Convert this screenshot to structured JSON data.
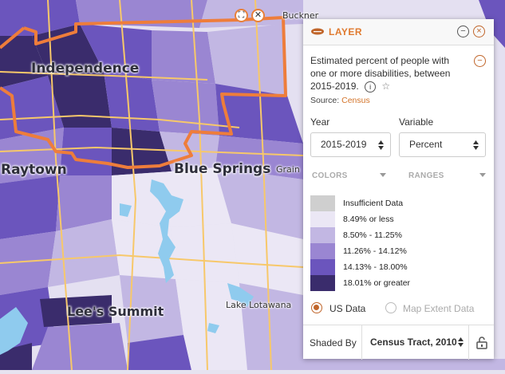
{
  "map": {
    "cities": {
      "independence": "Independence",
      "raytown": "Raytown",
      "blue_springs": "Blue Springs",
      "lees_summit": "Lee's Summit",
      "lake_lotawana": "Lake Lotawana",
      "buckner": "Buckner",
      "grain": "Grain"
    },
    "buttons": {
      "expand": "⛶",
      "close": "✕"
    }
  },
  "panel": {
    "title": "LAYER",
    "description": "Estimated percent of people with one or more disabilities, between 2015-2019.",
    "source_label": "Source:",
    "source_link": "Census",
    "year_label": "Year",
    "year_value": "2015-2019",
    "variable_label": "Variable",
    "variable_value": "Percent",
    "colors_tab": "COLORS",
    "ranges_tab": "RANGES",
    "legend": [
      {
        "label": "Insufficient Data",
        "color": "#cfcfcf"
      },
      {
        "label": "8.49% or less",
        "color": "#ebe7f5"
      },
      {
        "label": "8.50% - 11.25%",
        "color": "#c2b7e3"
      },
      {
        "label": "11.26% - 14.12%",
        "color": "#9a86d2"
      },
      {
        "label": "14.13% - 18.00%",
        "color": "#6b55bd"
      },
      {
        "label": "18.01% or greater",
        "color": "#3a2c6c"
      }
    ],
    "radio_us": "US Data",
    "radio_extent": "Map Extent Data",
    "shaded_by_label": "Shaded By",
    "shaded_by_value": "Census Tract, 2010"
  },
  "colors": {
    "accent": "#e07a2f",
    "boundary": "#ee7d3b",
    "water": "#8fcbee",
    "road": "#f7c86a"
  }
}
